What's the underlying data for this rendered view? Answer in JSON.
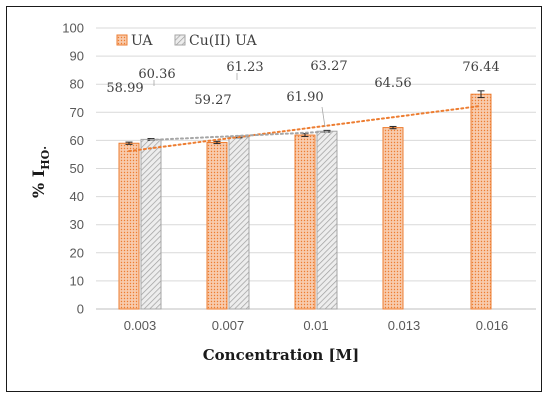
{
  "chart_data": {
    "type": "bar",
    "categories": [
      "0.003",
      "0.007",
      "0.01",
      "0.013",
      "0.016"
    ],
    "series": [
      {
        "name": "UA",
        "values": [
          58.99,
          59.27,
          61.9,
          64.56,
          76.44
        ],
        "labels": [
          "58.99",
          "59.27",
          "61.90",
          "64.56",
          "76.44"
        ],
        "errors": [
          0.4,
          0.4,
          0.5,
          0.4,
          1.2
        ],
        "color": "#F4B183",
        "edge_color": "#ED7D31"
      },
      {
        "name": "Cu(II) UA",
        "values": [
          60.36,
          61.23,
          63.27,
          null,
          null
        ],
        "labels": [
          "60.36",
          "61.23",
          "63.27",
          "",
          ""
        ],
        "errors": [
          0.3,
          0.3,
          0.3,
          null,
          null
        ],
        "color": "#D9D9D9",
        "edge_color": "#A6A6A6"
      }
    ],
    "trendlines": [
      {
        "series": "UA",
        "type": "linear",
        "color": "#ED7D31",
        "style": "dotted"
      },
      {
        "series": "Cu(II) UA",
        "type": "linear",
        "color": "#A6A6A6",
        "style": "dotted"
      }
    ],
    "xlabel": "Concentration [M]",
    "ylabel": {
      "main": "% I",
      "subscript": "HO·"
    },
    "ylim": [
      0,
      100
    ],
    "yticks": [
      "0",
      "10",
      "20",
      "30",
      "40",
      "50",
      "60",
      "70",
      "80",
      "90",
      "100"
    ],
    "grid": "horizontal",
    "legend": "top-left"
  }
}
